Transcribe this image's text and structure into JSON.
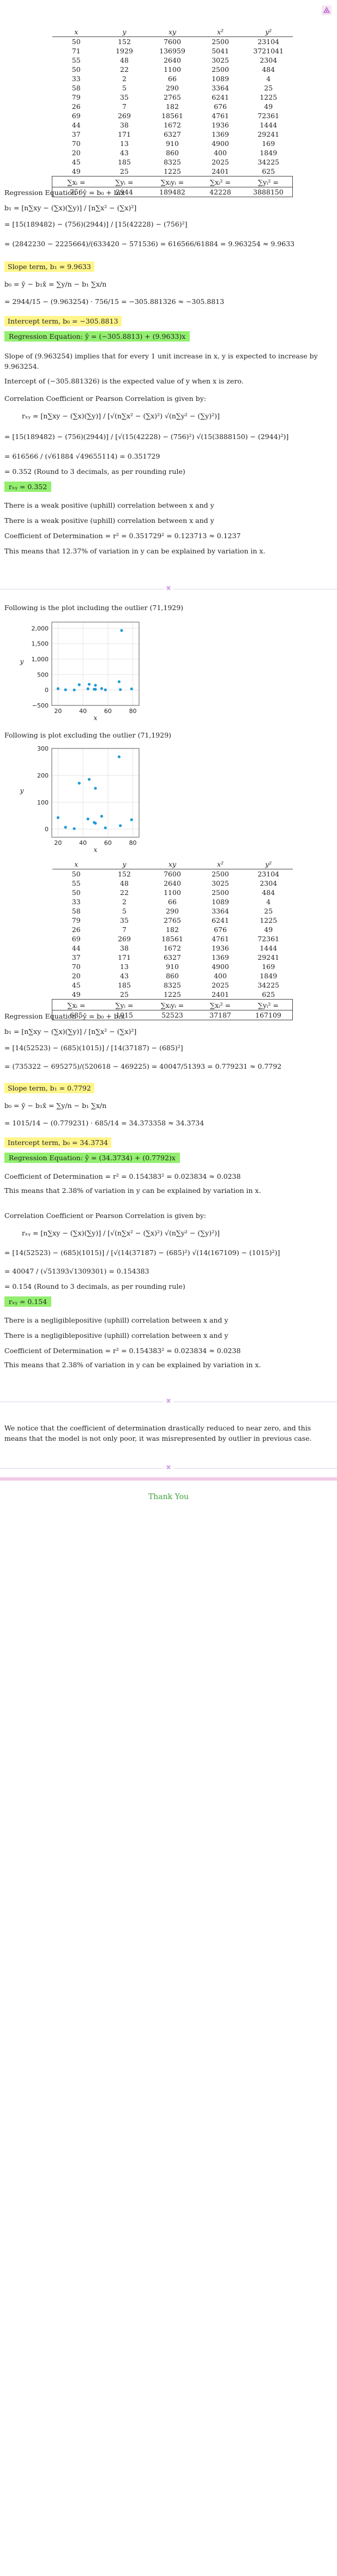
{
  "brand": {
    "logo": "eduhelp-logo-icon",
    "accent": "#b66bd6",
    "highlight_yellow": "#fff58a",
    "highlight_green": "#93ef6f"
  },
  "table1": {
    "headers": [
      "x",
      "y",
      "xy",
      "x²",
      "y²"
    ],
    "rows": [
      [
        "50",
        "152",
        "7600",
        "2500",
        "23104"
      ],
      [
        "71",
        "1929",
        "136959",
        "5041",
        "3721041"
      ],
      [
        "55",
        "48",
        "2640",
        "3025",
        "2304"
      ],
      [
        "50",
        "22",
        "1100",
        "2500",
        "484"
      ],
      [
        "33",
        "2",
        "66",
        "1089",
        "4"
      ],
      [
        "58",
        "5",
        "290",
        "3364",
        "25"
      ],
      [
        "79",
        "35",
        "2765",
        "6241",
        "1225"
      ],
      [
        "26",
        "7",
        "182",
        "676",
        "49"
      ],
      [
        "69",
        "269",
        "18561",
        "4761",
        "72361"
      ],
      [
        "44",
        "38",
        "1672",
        "1936",
        "1444"
      ],
      [
        "37",
        "171",
        "6327",
        "1369",
        "29241"
      ],
      [
        "70",
        "13",
        "910",
        "4900",
        "169"
      ],
      [
        "20",
        "43",
        "860",
        "400",
        "1849"
      ],
      [
        "45",
        "185",
        "8325",
        "2025",
        "34225"
      ],
      [
        "49",
        "25",
        "1225",
        "2401",
        "625"
      ]
    ],
    "sum_labels": [
      "∑xᵢ =",
      "∑yᵢ =",
      "∑xᵢyᵢ =",
      "∑xᵢ² =",
      "∑yᵢ² ="
    ],
    "totals": [
      "756",
      "2944",
      "189482",
      "42228",
      "3888150"
    ]
  },
  "part1": {
    "reg_eq_label": "Regression Equation : ŷ = b₀ + b₁x",
    "b1_formula": "b₁ = [n∑xy − (∑x)(∑y)] / [n∑x² − (∑x)²]",
    "b1_sub1": "= [15(189482) − (756)(2944)] / [15(42228) − (756)²]",
    "b1_sub2": "= (2842230 − 2225664)/(633420 − 571536) = 616566/61884 = 9.963254 ≈ 9.9633",
    "slope_box": "Slope term, b₁ = 9.9633",
    "b0_formula": "b₀ = ȳ − b₁x̄ = ∑y/n − b₁ ∑x/n",
    "b0_sub": "= 2944/15 − (9.963254) · 756/15 = −305.881326 ≈ −305.8813",
    "intercept_box": "Intercept term, b₀ = −305.8813",
    "reg_box": "Regression Equation:  ŷ = (−305.8813) + (9.9633)x",
    "slope_text": "Slope of (9.963254) implies that for every 1 unit increase in x, y is expected to increase by 9.963254.",
    "intercept_text": "Intercept of (−305.881326) is the expected value of y when x is zero.",
    "corr_label": "Correlation Coefficient or Pearson Correlation is given by:",
    "r_formula": "rₓᵧ = [n∑xy − (∑x)(∑y)] / [√(n∑x² − (∑x)²) √(n∑y² − (∑y)²)]",
    "r_sub1": "= [15(189482) − (756)(2944)] / [√(15(42228) − (756)²) √(15(3888150) − (2944)²)]",
    "r_sub2": "= 616566 / (√61884 √49655114) = 0.351729",
    "r_round": "= 0.352 (Round to 3 decimals, as per rounding rule)",
    "r_box": "rₓᵧ = 0.352",
    "t1": "There is a weak positive (uphill) correlation between x and y",
    "t2": "There is a weak positive (uphill) correlation between x and y",
    "cod": "Coefficient of Determination = r² = 0.351729² = 0.123713 ≈ 0.1237",
    "cod_text": "This means that 12.37% of variation in y can be explained by variation in x."
  },
  "plot1_caption": "Following is the plot including the outlier (71,1929)",
  "plot2_caption": "Following is plot excluding the outlier (71,1929)",
  "chart_data": [
    {
      "type": "scatter",
      "title": "",
      "xlabel": "x",
      "ylabel": "y",
      "xlim": [
        15,
        85
      ],
      "ylim": [
        -500,
        2200
      ],
      "xticks": [
        20,
        40,
        60,
        80
      ],
      "yticks": [
        -500,
        0,
        500,
        1000,
        1500,
        2000
      ],
      "ytick_labels": [
        "−500",
        "0",
        "500",
        "1,000",
        "1,500",
        "2,000"
      ],
      "color": "#1e9ad6",
      "x": [
        50,
        71,
        55,
        50,
        33,
        58,
        79,
        26,
        69,
        44,
        37,
        70,
        20,
        45,
        49
      ],
      "y": [
        152,
        1929,
        48,
        22,
        2,
        5,
        35,
        7,
        269,
        38,
        171,
        13,
        43,
        185,
        25
      ]
    },
    {
      "type": "scatter",
      "title": "",
      "xlabel": "x",
      "ylabel": "y",
      "xlim": [
        15,
        85
      ],
      "ylim": [
        -30,
        300
      ],
      "xticks": [
        20,
        40,
        60,
        80
      ],
      "yticks": [
        0,
        100,
        200,
        300
      ],
      "ytick_labels": [
        "0",
        "100",
        "200",
        "300"
      ],
      "color": "#1e9ad6",
      "x": [
        50,
        55,
        50,
        33,
        58,
        79,
        26,
        69,
        44,
        37,
        70,
        20,
        45,
        49
      ],
      "y": [
        152,
        48,
        22,
        2,
        5,
        35,
        7,
        269,
        38,
        171,
        13,
        43,
        185,
        25
      ]
    }
  ],
  "table2": {
    "headers": [
      "x",
      "y",
      "xy",
      "x²",
      "y²"
    ],
    "rows": [
      [
        "50",
        "152",
        "7600",
        "2500",
        "23104"
      ],
      [
        "55",
        "48",
        "2640",
        "3025",
        "2304"
      ],
      [
        "50",
        "22",
        "1100",
        "2500",
        "484"
      ],
      [
        "33",
        "2",
        "66",
        "1089",
        "4"
      ],
      [
        "58",
        "5",
        "290",
        "3364",
        "25"
      ],
      [
        "79",
        "35",
        "2765",
        "6241",
        "1225"
      ],
      [
        "26",
        "7",
        "182",
        "676",
        "49"
      ],
      [
        "69",
        "269",
        "18561",
        "4761",
        "72361"
      ],
      [
        "44",
        "38",
        "1672",
        "1936",
        "1444"
      ],
      [
        "37",
        "171",
        "6327",
        "1369",
        "29241"
      ],
      [
        "70",
        "13",
        "910",
        "4900",
        "169"
      ],
      [
        "20",
        "43",
        "860",
        "400",
        "1849"
      ],
      [
        "45",
        "185",
        "8325",
        "2025",
        "34225"
      ],
      [
        "49",
        "25",
        "1225",
        "2401",
        "625"
      ]
    ],
    "sum_labels": [
      "∑xᵢ =",
      "∑yᵢ =",
      "∑xᵢyᵢ =",
      "∑xᵢ² =",
      "∑yᵢ² ="
    ],
    "totals": [
      "685",
      "1015",
      "52523",
      "37187",
      "167109"
    ]
  },
  "part2": {
    "reg_eq_label": "Regression Equation : ŷ = b₀ + b₁x",
    "b1_formula": "b₁ = [n∑xy − (∑x)(∑y)] / [n∑x² − (∑x)²]",
    "b1_sub1": "= [14(52523) − (685)(1015)] / [14(37187) − (685)²]",
    "b1_sub2": "= (735322 − 695275)/(520618 − 469225) = 40047/51393 = 0.779231 ≈ 0.7792",
    "slope_box": "Slope term, b₁ = 0.7792",
    "b0_formula": "b₀ = ȳ − b₁x̄ = ∑y/n − b₁ ∑x/n",
    "b0_sub": "= 1015/14 − (0.779231) · 685/14 = 34.373358 ≈ 34.3734",
    "intercept_box": "Intercept term, b₀ = 34.3734",
    "reg_box": "Regression Equation:  ŷ = (34.3734) + (0.7792)x",
    "cod": "Coefficient of Determination = r² = 0.154383² = 0.023834 ≈ 0.0238",
    "cod_text": "This means that 2.38% of variation in y can be explained by variation in x.",
    "corr_label": "Correlation Coefficient or Pearson Correlation is given by:",
    "r_formula": "rₓᵧ = [n∑xy − (∑x)(∑y)] / [√(n∑x² − (∑x)²) √(n∑y² − (∑y)²)]",
    "r_sub1": "= [14(52523) − (685)(1015)] / [√(14(37187) − (685)²) √(14(167109) − (1015)²)]",
    "r_sub2": "= 40047 / (√51393√1309301) = 0.154383",
    "r_round": "= 0.154 (Round to 3 decimals, as per rounding rule)",
    "r_box": "rₓᵧ = 0.154",
    "t1": "There is a negligiblepositive (uphill) correlation between x and y",
    "t2": "There is a negligiblepositive (uphill) correlation between x and y",
    "cod2": "Coefficient of Determination = r² = 0.154383² = 0.023834 ≈ 0.0238",
    "cod2_text": "This means that 2.38% of variation in y can be explained by variation in x."
  },
  "conclusion": "We notice that the coefficient of determination drastically reduced to near zero, and this means that the model is not only poor, it was misrepresented by outlier in previous case.",
  "thank_you": "Thank You"
}
